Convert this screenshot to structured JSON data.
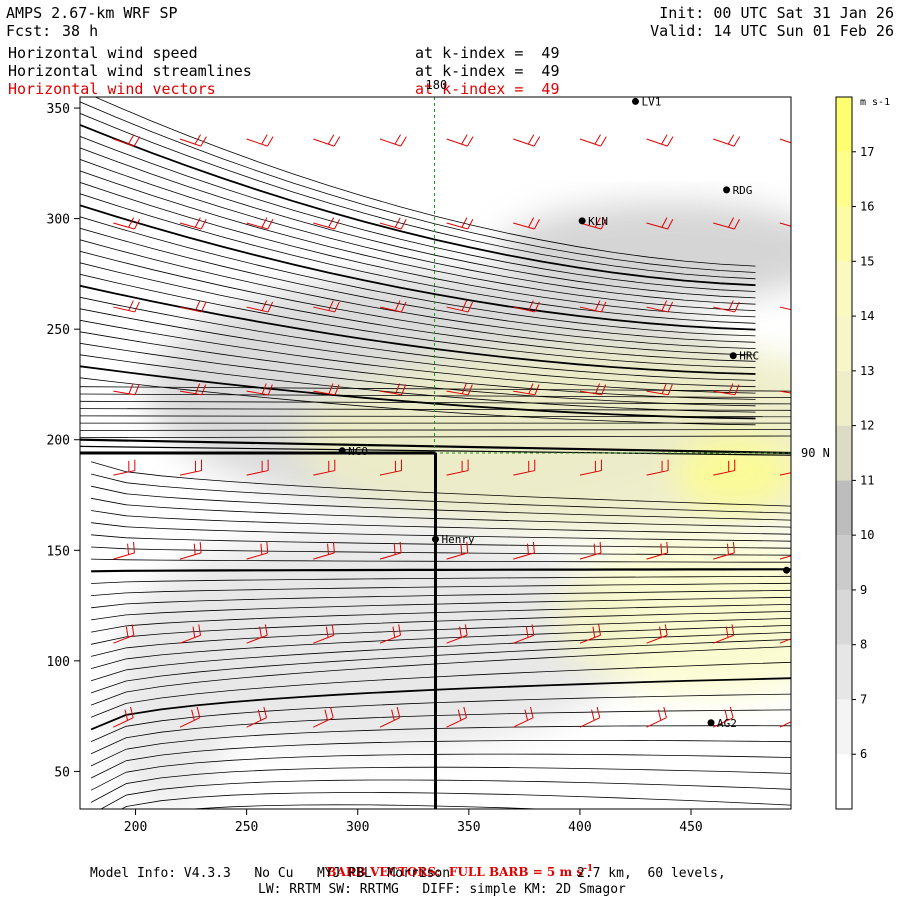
{
  "header": {
    "model": "AMPS 2.67-km WRF SP",
    "fcst_label": "Fcst:",
    "fcst_value": "38 h",
    "init": "Init: 00 UTC Sat 31 Jan 26",
    "valid": "Valid: 14 UTC Sun 01 Feb 26"
  },
  "fields": [
    {
      "name": "Horizontal wind speed",
      "level": "at k-index =  49",
      "color": "#000000"
    },
    {
      "name": "Horizontal wind streamlines",
      "level": "at k-index =  49",
      "color": "#000000"
    },
    {
      "name": "Horizontal wind vectors",
      "level": "at k-index =  49",
      "color": "#e00000"
    }
  ],
  "chart_data": {
    "type": "heatmap",
    "xlim": [
      175,
      495
    ],
    "ylim": [
      33,
      355
    ],
    "x_ticks": [
      200,
      250,
      300,
      350,
      400,
      450
    ],
    "y_ticks": [
      50,
      100,
      150,
      200,
      250,
      300,
      350
    ],
    "colorbar": {
      "unit": "m s-1",
      "levels": [
        6,
        7,
        8,
        9,
        10,
        11,
        12,
        13,
        14,
        15,
        16,
        17
      ],
      "colors": [
        "#ffffff",
        "#f4f4f4",
        "#e6e6e6",
        "#d8d8d8",
        "#cbcbcb",
        "#bdbdbd",
        "#dcdcc6",
        "#eeeec8",
        "#f6f6c8",
        "#fafac0",
        "#fcfca6",
        "#fefe8a",
        "#ffff70"
      ]
    },
    "cross_section": {
      "vertical_x": 180,
      "horizontal_y": 90,
      "top_label": "180",
      "right_label": "90 N"
    },
    "stations": [
      {
        "name": "LV1",
        "x": 425,
        "y": 353
      },
      {
        "name": "RDG",
        "x": 466,
        "y": 313
      },
      {
        "name": "KLN",
        "x": 401,
        "y": 299
      },
      {
        "name": "HRC",
        "x": 469,
        "y": 238
      },
      {
        "name": "NCO",
        "x": 293,
        "y": 195
      },
      {
        "name": "Henry",
        "x": 335,
        "y": 155
      },
      {
        "name": "AG2",
        "x": 459,
        "y": 72
      },
      {
        "name": "",
        "x": 493,
        "y": 141
      }
    ],
    "barb_note": "BARB VECTORS:  FULL BARB = 5 m s",
    "barb_unit_sup": "-1"
  },
  "footer": {
    "line1a": "Model Info: V4.3.3   No Cu   MYJ PBL  Morrison",
    "line1b": "2.7 km,  60 levels,",
    "line2": "LW: RRTM SW: RRTMG   DIFF: simple KM: 2D Smagor"
  }
}
